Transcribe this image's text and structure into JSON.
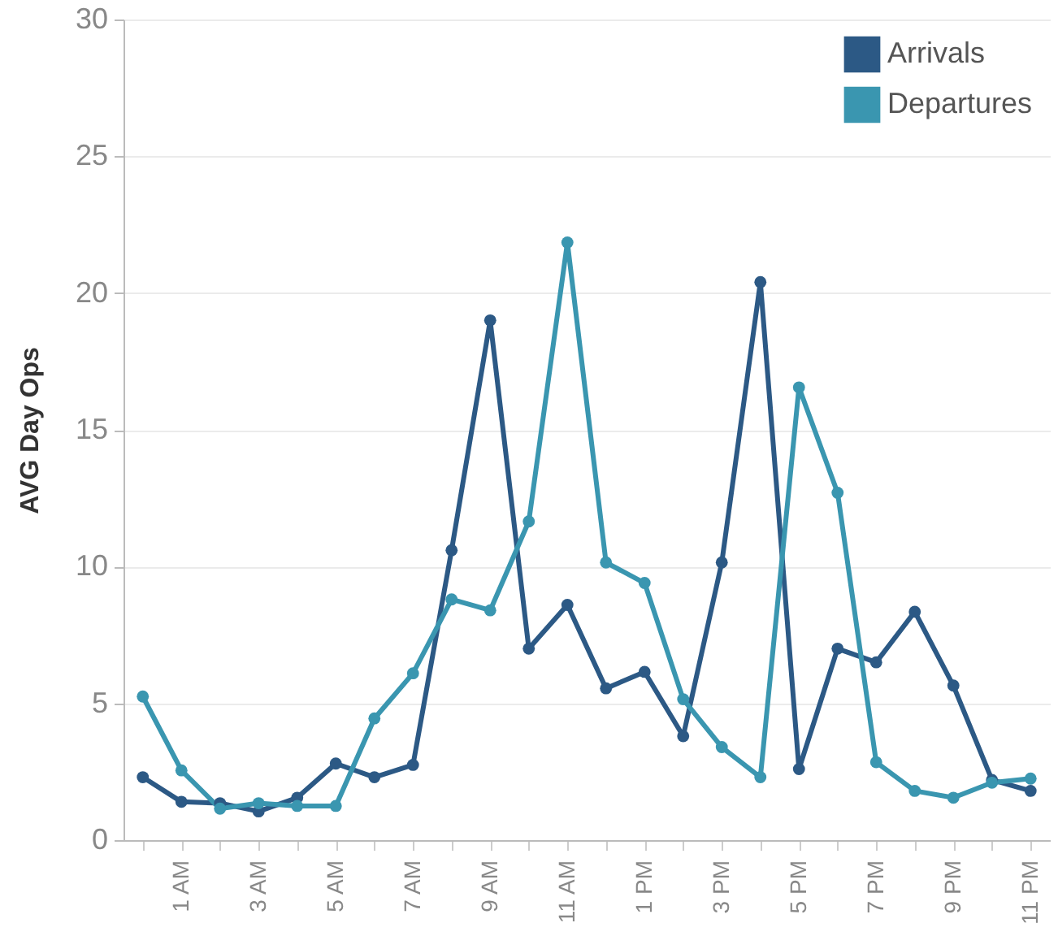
{
  "chart_data": {
    "type": "line",
    "ylabel": "AVG Day Ops",
    "categories": [
      null,
      "1 AM",
      null,
      "3 AM",
      null,
      "5 AM",
      null,
      "7 AM",
      null,
      "9 AM",
      null,
      "11 AM",
      null,
      "1 PM",
      null,
      "3 PM",
      null,
      "5 PM",
      null,
      "7 PM",
      null,
      "9 PM",
      null,
      "11 PM"
    ],
    "series": [
      {
        "name": "Arrivals",
        "color": "#2c5985",
        "values": [
          2.3,
          1.4,
          1.35,
          1.05,
          1.55,
          2.8,
          2.3,
          2.75,
          10.6,
          19.0,
          7.0,
          8.6,
          5.55,
          6.15,
          3.8,
          10.15,
          20.4,
          2.6,
          7.0,
          6.5,
          8.35,
          5.65,
          2.2,
          1.8
        ]
      },
      {
        "name": "Departures",
        "color": "#3a96b0",
        "values": [
          5.25,
          2.55,
          1.15,
          1.35,
          1.25,
          1.25,
          4.45,
          6.1,
          8.8,
          8.4,
          11.65,
          21.85,
          10.15,
          9.4,
          5.15,
          3.4,
          2.3,
          16.55,
          12.7,
          2.85,
          1.8,
          1.55,
          2.1,
          2.25
        ]
      }
    ],
    "ylim": [
      0,
      30
    ],
    "yticks": [
      0,
      5,
      10,
      15,
      20,
      25,
      30
    ],
    "grid": "y",
    "legend": "top right",
    "marker": "circle",
    "line_style": "solid"
  }
}
